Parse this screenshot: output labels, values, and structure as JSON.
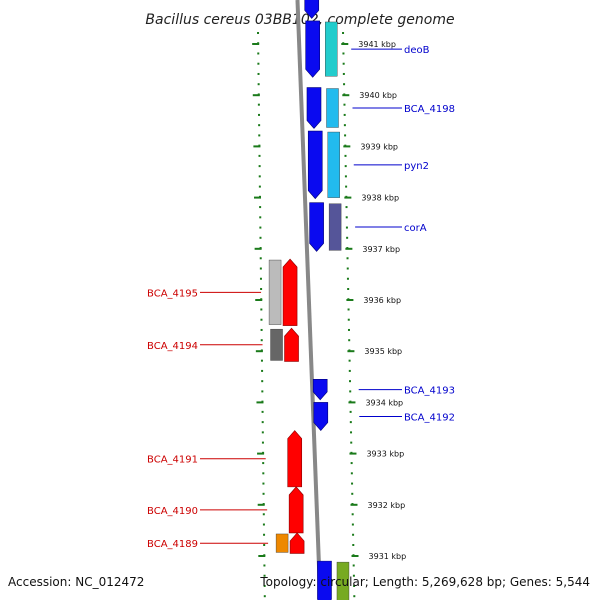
{
  "title": "Bacillus cereus 03BB102, complete genome",
  "footer": {
    "accession": "Accession: NC_012472",
    "summary": "Topology: circular; Length: 5,269,628 bp; Genes: 5,544"
  },
  "colors": {
    "forward_label": "#0000cc",
    "reverse_label": "#cc0000",
    "tick": "#1a7a1a",
    "backbone": "#888888"
  },
  "scale": {
    "unit": "kbp",
    "ticks": [
      {
        "kbp": 3941,
        "label": "3941 kbp"
      },
      {
        "kbp": 3940,
        "label": "3940 kbp"
      },
      {
        "kbp": 3939,
        "label": "3939 kbp"
      },
      {
        "kbp": 3938,
        "label": "3938 kbp"
      },
      {
        "kbp": 3937,
        "label": "3937 kbp"
      },
      {
        "kbp": 3936,
        "label": "3936 kbp"
      },
      {
        "kbp": 3935,
        "label": "3935 kbp"
      },
      {
        "kbp": 3934,
        "label": "3934 kbp"
      },
      {
        "kbp": 3933,
        "label": "3933 kbp"
      },
      {
        "kbp": 3932,
        "label": "3932 kbp"
      },
      {
        "kbp": 3931,
        "label": "3931 kbp"
      }
    ]
  },
  "genes": [
    {
      "name": "deoB",
      "strand": "forward",
      "start_kbp": 3941.45,
      "end_kbp": 3940.35,
      "cog_color": "#22cccc",
      "labeled": true
    },
    {
      "name": "BCA_4198",
      "strand": "forward",
      "start_kbp": 3940.15,
      "end_kbp": 3939.35,
      "cog_color": "#22bbee",
      "labeled": true
    },
    {
      "name": "pyn2",
      "strand": "forward",
      "start_kbp": 3939.3,
      "end_kbp": 3937.98,
      "cog_color": "#22bbee",
      "labeled": true
    },
    {
      "name": "corA",
      "strand": "forward",
      "start_kbp": 3937.9,
      "end_kbp": 3936.95,
      "cog_color": "#555599",
      "labeled": true
    },
    {
      "name": "BCA_4195",
      "strand": "reverse",
      "start_kbp": 3935.5,
      "end_kbp": 3936.8,
      "cog_color": "#bbbbbb",
      "labeled": true
    },
    {
      "name": "BCA_4194",
      "strand": "reverse",
      "start_kbp": 3934.8,
      "end_kbp": 3935.45,
      "cog_color": "#666666",
      "labeled": true
    },
    {
      "name": "BCA_4193",
      "strand": "forward",
      "start_kbp": 3934.45,
      "end_kbp": 3934.05,
      "cog_color": null,
      "labeled": true
    },
    {
      "name": "BCA_4192",
      "strand": "forward",
      "start_kbp": 3934.0,
      "end_kbp": 3933.45,
      "cog_color": null,
      "labeled": true
    },
    {
      "name": "BCA_4191",
      "strand": "reverse",
      "start_kbp": 3932.35,
      "end_kbp": 3933.45,
      "cog_color": null,
      "labeled": true
    },
    {
      "name": "BCA_4190",
      "strand": "reverse",
      "start_kbp": 3931.45,
      "end_kbp": 3932.35,
      "cog_color": null,
      "labeled": true
    },
    {
      "name": "BCA_4189",
      "strand": "reverse",
      "start_kbp": 3931.05,
      "end_kbp": 3931.45,
      "cog_color": "#ee8800",
      "labeled": true
    },
    {
      "name": "",
      "strand": "forward",
      "start_kbp": 3930.9,
      "end_kbp": 3930.0,
      "cog_color": "#77aa22",
      "labeled": false
    },
    {
      "name": "",
      "strand": "forward",
      "start_kbp": 3942.0,
      "end_kbp": 3941.5,
      "cog_color": null,
      "labeled": false
    }
  ]
}
